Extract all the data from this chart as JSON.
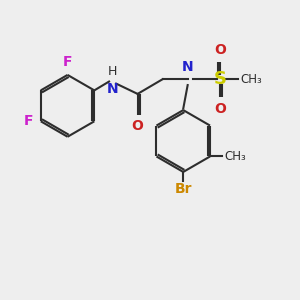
{
  "bg_color": "#eeeeee",
  "bond_color": "#2d2d2d",
  "atom_colors": {
    "F": "#cc22cc",
    "N": "#2222cc",
    "O": "#cc2222",
    "S": "#cccc00",
    "Br": "#cc8800",
    "C": "#2d2d2d",
    "H": "#2d2d2d"
  },
  "font_size_atom": 10,
  "font_size_small": 8.5
}
